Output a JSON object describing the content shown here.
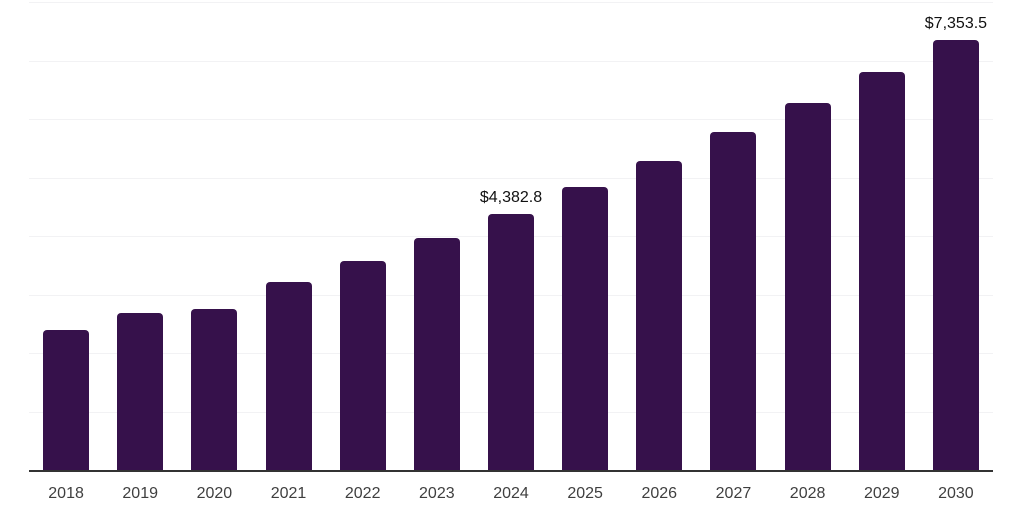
{
  "chart_data": {
    "type": "bar",
    "title": "",
    "xlabel": "",
    "ylabel": "",
    "categories": [
      "2018",
      "2019",
      "2020",
      "2021",
      "2022",
      "2023",
      "2024",
      "2025",
      "2026",
      "2027",
      "2028",
      "2029",
      "2030"
    ],
    "values": [
      2400,
      2680,
      2760,
      3210,
      3580,
      3970,
      4382.8,
      4830,
      5290,
      5780,
      6280,
      6800,
      7353.5
    ],
    "data_labels": {
      "2024": "$4,382.8",
      "2030": "$7,353.5"
    },
    "ylim": [
      0,
      8000
    ],
    "gridline_step": 1000,
    "grid": true,
    "legend_position": "none",
    "colors": {
      "bar": "#36114b",
      "axis_line": "#333333",
      "gridline": "#f2f2f4",
      "tick_label": "#3f3f3f",
      "data_label": "#111111",
      "background": "#ffffff"
    }
  }
}
